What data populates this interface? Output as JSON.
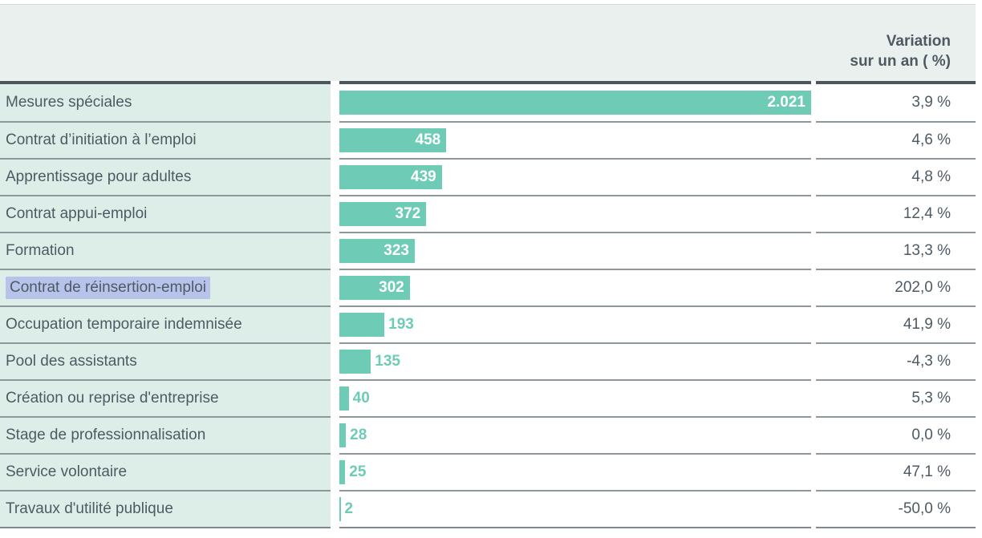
{
  "header": {
    "line1": "Variation",
    "line2": "sur un an ( %)"
  },
  "colors": {
    "bar": "#6ecbb6",
    "label_column_bg": "#ddeee9",
    "header_bg": "#eaf0ee",
    "text": "#4e5a63",
    "highlight": "#b8c3eb",
    "separator": "#8d979c",
    "header_rule": "#4c565e",
    "bottom_rule": "#7e888e"
  },
  "chart_data": {
    "type": "bar",
    "orientation": "horizontal",
    "title": "",
    "xlabel": "",
    "ylabel": "",
    "legend": [],
    "grid": false,
    "value_axis_visible": false,
    "variation_column_header": "Variation sur un an ( %)",
    "categories": [
      "Mesures spéciales",
      "Contrat d’initiation à l’emploi",
      "Apprentissage pour adultes",
      "Contrat appui-emploi",
      "Formation",
      "Contrat de réinsertion-emploi",
      "Occupation temporaire indemnisée",
      "Pool des assistants",
      "Création ou reprise d'entreprise",
      "Stage de professionnalisation",
      "Service volontaire",
      "Travaux d'utilité publique"
    ],
    "values": [
      2021,
      458,
      439,
      372,
      323,
      302,
      193,
      135,
      40,
      28,
      25,
      2
    ],
    "rows": [
      {
        "label": "Mesures spéciales",
        "value": 2021,
        "value_label": "2.021",
        "variation": "3,9 %",
        "highlighted": false
      },
      {
        "label": "Contrat d’initiation à l’emploi",
        "value": 458,
        "value_label": "458",
        "variation": "4,6 %",
        "highlighted": false
      },
      {
        "label": "Apprentissage pour adultes",
        "value": 439,
        "value_label": "439",
        "variation": "4,8 %",
        "highlighted": false
      },
      {
        "label": "Contrat appui-emploi",
        "value": 372,
        "value_label": "372",
        "variation": "12,4 %",
        "highlighted": false
      },
      {
        "label": "Formation",
        "value": 323,
        "value_label": "323",
        "variation": "13,3 %",
        "highlighted": false
      },
      {
        "label": "Contrat de réinsertion-emploi",
        "value": 302,
        "value_label": "302",
        "variation": "202,0 %",
        "highlighted": true
      },
      {
        "label": "Occupation temporaire indemnisée",
        "value": 193,
        "value_label": "193",
        "variation": "41,9 %",
        "highlighted": false
      },
      {
        "label": "Pool des assistants",
        "value": 135,
        "value_label": "135",
        "variation": "-4,3 %",
        "highlighted": false
      },
      {
        "label": "Création ou reprise d'entreprise",
        "value": 40,
        "value_label": "40",
        "variation": "5,3 %",
        "highlighted": false
      },
      {
        "label": "Stage de professionnalisation",
        "value": 28,
        "value_label": "28",
        "variation": "0,0 %",
        "highlighted": false
      },
      {
        "label": "Service volontaire",
        "value": 25,
        "value_label": "25",
        "variation": "47,1 %",
        "highlighted": false
      },
      {
        "label": "Travaux d'utilité publique",
        "value": 2,
        "value_label": "2",
        "variation": "-50,0 %",
        "highlighted": false
      }
    ]
  }
}
